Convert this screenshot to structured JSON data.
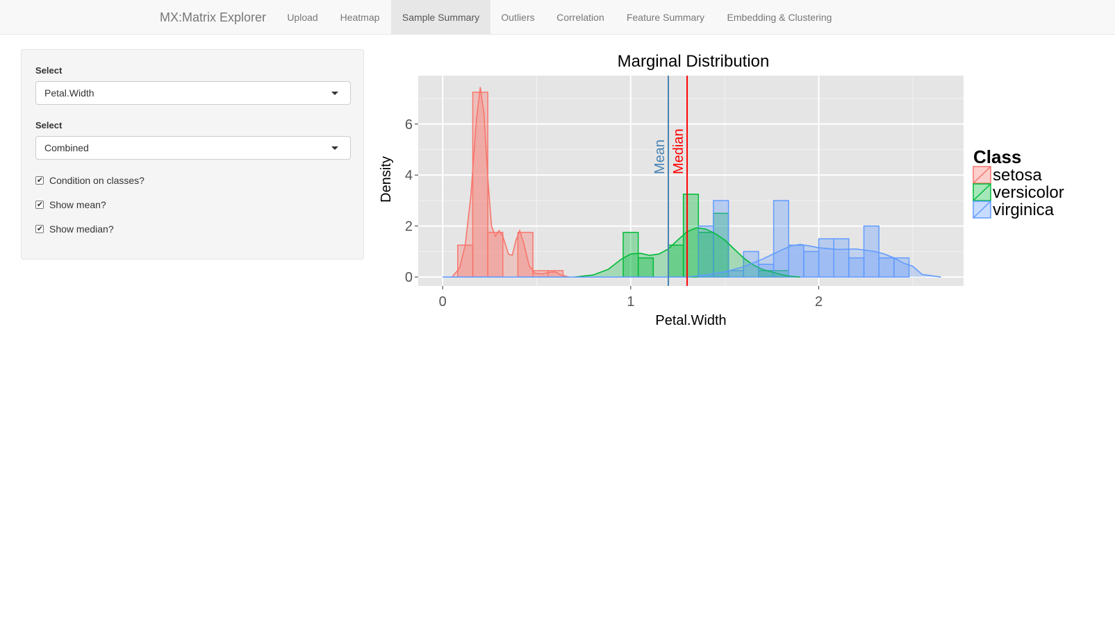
{
  "navbar": {
    "brand": "MX:Matrix Explorer",
    "tabs": [
      {
        "label": "Upload",
        "active": false
      },
      {
        "label": "Heatmap",
        "active": false
      },
      {
        "label": "Sample Summary",
        "active": true
      },
      {
        "label": "Outliers",
        "active": false
      },
      {
        "label": "Correlation",
        "active": false
      },
      {
        "label": "Feature Summary",
        "active": false
      },
      {
        "label": "Embedding & Clustering",
        "active": false
      }
    ]
  },
  "sidebar": {
    "select1": {
      "label": "Select",
      "value": "Petal.Width"
    },
    "select2": {
      "label": "Select",
      "value": "Combined"
    },
    "checkboxes": [
      {
        "label": "Condition on classes?",
        "checked": true
      },
      {
        "label": "Show mean?",
        "checked": true
      },
      {
        "label": "Show median?",
        "checked": true
      }
    ]
  },
  "colors": {
    "setosa": "#F8766D",
    "versicolor": "#00BA38",
    "virginica": "#619CFF",
    "mean_line": "#4682B4",
    "median_line": "#FF0000",
    "panel_bg": "#E5E5E5",
    "active_tab_bg": "#E7E7E7"
  },
  "chart_data": {
    "type": "bar",
    "title": "Marginal Distribution",
    "xlabel": "Petal.Width",
    "ylabel": "Density",
    "xlim": [
      -0.13,
      2.77
    ],
    "ylim": [
      -0.35,
      7.9
    ],
    "xticks": [
      "0",
      "1",
      "2"
    ],
    "yticks": [
      "0",
      "2",
      "4",
      "6"
    ],
    "grid": true,
    "legend": {
      "title": "Class",
      "position": "right",
      "entries": [
        "setosa",
        "versicolor",
        "virginica"
      ]
    },
    "bin_width": 0.08,
    "series": [
      {
        "name": "setosa",
        "bins": [
          {
            "x0": 0.08,
            "x1": 0.16,
            "y": 1.25
          },
          {
            "x0": 0.16,
            "x1": 0.24,
            "y": 7.25
          },
          {
            "x0": 0.24,
            "x1": 0.32,
            "y": 1.75
          },
          {
            "x0": 0.32,
            "x1": 0.4,
            "y": 0.0
          },
          {
            "x0": 0.4,
            "x1": 0.48,
            "y": 1.75
          },
          {
            "x0": 0.48,
            "x1": 0.56,
            "y": 0.25
          },
          {
            "x0": 0.56,
            "x1": 0.64,
            "y": 0.25
          }
        ],
        "density": [
          [
            0.05,
            0.0
          ],
          [
            0.09,
            0.35
          ],
          [
            0.12,
            1.25
          ],
          [
            0.15,
            3.2
          ],
          [
            0.18,
            6.2
          ],
          [
            0.2,
            7.45
          ],
          [
            0.22,
            6.4
          ],
          [
            0.24,
            3.9
          ],
          [
            0.26,
            2.0
          ],
          [
            0.28,
            1.6
          ],
          [
            0.3,
            1.82
          ],
          [
            0.32,
            1.6
          ],
          [
            0.35,
            0.9
          ],
          [
            0.37,
            0.85
          ],
          [
            0.39,
            1.45
          ],
          [
            0.41,
            1.82
          ],
          [
            0.43,
            1.35
          ],
          [
            0.46,
            0.45
          ],
          [
            0.49,
            0.15
          ],
          [
            0.53,
            0.12
          ],
          [
            0.56,
            0.18
          ],
          [
            0.6,
            0.2
          ],
          [
            0.63,
            0.08
          ],
          [
            0.67,
            0.0
          ]
        ]
      },
      {
        "name": "versicolor",
        "bins": [
          {
            "x0": 0.96,
            "x1": 1.04,
            "y": 1.75
          },
          {
            "x0": 1.04,
            "x1": 1.12,
            "y": 0.75
          },
          {
            "x0": 1.12,
            "x1": 1.2,
            "y": 0.0
          },
          {
            "x0": 1.2,
            "x1": 1.28,
            "y": 1.25
          },
          {
            "x0": 1.28,
            "x1": 1.36,
            "y": 3.25
          },
          {
            "x0": 1.36,
            "x1": 1.44,
            "y": 1.75
          },
          {
            "x0": 1.44,
            "x1": 1.52,
            "y": 2.5
          },
          {
            "x0": 1.52,
            "x1": 1.6,
            "y": 0.0
          },
          {
            "x0": 1.6,
            "x1": 1.68,
            "y": 0.0
          },
          {
            "x0": 1.68,
            "x1": 1.76,
            "y": 0.25
          },
          {
            "x0": 1.76,
            "x1": 1.84,
            "y": 0.25
          }
        ],
        "density": [
          [
            0.7,
            0.0
          ],
          [
            0.8,
            0.08
          ],
          [
            0.88,
            0.3
          ],
          [
            0.95,
            0.7
          ],
          [
            1.0,
            0.9
          ],
          [
            1.05,
            0.93
          ],
          [
            1.1,
            0.85
          ],
          [
            1.15,
            0.9
          ],
          [
            1.2,
            1.1
          ],
          [
            1.25,
            1.45
          ],
          [
            1.3,
            1.78
          ],
          [
            1.35,
            1.93
          ],
          [
            1.4,
            1.88
          ],
          [
            1.45,
            1.7
          ],
          [
            1.5,
            1.45
          ],
          [
            1.55,
            1.1
          ],
          [
            1.6,
            0.75
          ],
          [
            1.65,
            0.48
          ],
          [
            1.7,
            0.3
          ],
          [
            1.75,
            0.2
          ],
          [
            1.8,
            0.1
          ],
          [
            1.85,
            0.03
          ],
          [
            1.9,
            0.0
          ]
        ]
      },
      {
        "name": "virginica",
        "bins": [
          {
            "x0": 1.36,
            "x1": 1.44,
            "y": 2.0
          },
          {
            "x0": 1.44,
            "x1": 1.52,
            "y": 3.0
          },
          {
            "x0": 1.52,
            "x1": 1.6,
            "y": 0.25
          },
          {
            "x0": 1.6,
            "x1": 1.68,
            "y": 1.0
          },
          {
            "x0": 1.68,
            "x1": 1.76,
            "y": 0.5
          },
          {
            "x0": 1.76,
            "x1": 1.84,
            "y": 3.0
          },
          {
            "x0": 1.84,
            "x1": 1.92,
            "y": 1.25
          },
          {
            "x0": 1.92,
            "x1": 2.0,
            "y": 1.0
          },
          {
            "x0": 2.0,
            "x1": 2.08,
            "y": 1.5
          },
          {
            "x0": 2.08,
            "x1": 2.16,
            "y": 1.5
          },
          {
            "x0": 2.16,
            "x1": 2.24,
            "y": 0.75
          },
          {
            "x0": 2.24,
            "x1": 2.32,
            "y": 2.0
          },
          {
            "x0": 2.32,
            "x1": 2.4,
            "y": 0.75
          },
          {
            "x0": 2.4,
            "x1": 2.48,
            "y": 0.75
          }
        ],
        "density": [
          [
            0.0,
            0.0
          ],
          [
            1.3,
            0.0
          ],
          [
            1.4,
            0.08
          ],
          [
            1.5,
            0.2
          ],
          [
            1.6,
            0.4
          ],
          [
            1.7,
            0.7
          ],
          [
            1.8,
            1.05
          ],
          [
            1.85,
            1.22
          ],
          [
            1.9,
            1.28
          ],
          [
            1.95,
            1.22
          ],
          [
            2.0,
            1.15
          ],
          [
            2.1,
            1.08
          ],
          [
            2.2,
            1.1
          ],
          [
            2.3,
            1.0
          ],
          [
            2.35,
            0.9
          ],
          [
            2.4,
            0.75
          ],
          [
            2.45,
            0.55
          ],
          [
            2.5,
            0.42
          ],
          [
            2.55,
            0.1
          ],
          [
            2.65,
            0.0
          ]
        ]
      }
    ],
    "vlines": [
      {
        "label": "Mean",
        "x": 1.2
      },
      {
        "label": "Median",
        "x": 1.3
      }
    ]
  }
}
